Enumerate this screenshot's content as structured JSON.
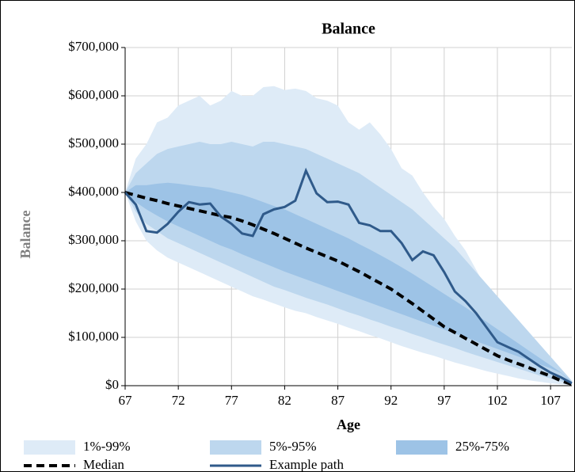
{
  "chart_data": {
    "type": "fan",
    "title": "Balance",
    "xlabel": "Age",
    "ylabel": "Balance",
    "x": [
      67,
      68,
      69,
      70,
      71,
      72,
      73,
      74,
      75,
      76,
      77,
      78,
      79,
      80,
      81,
      82,
      83,
      84,
      85,
      86,
      87,
      88,
      89,
      90,
      91,
      92,
      93,
      94,
      95,
      96,
      97,
      98,
      99,
      100,
      101,
      102,
      103,
      104,
      105,
      106,
      107,
      108,
      109
    ],
    "xlim": [
      67,
      109
    ],
    "xticks": [
      67,
      72,
      77,
      82,
      87,
      92,
      97,
      102,
      107
    ],
    "ylim": [
      0,
      700000
    ],
    "yticks": [
      {
        "value": 0,
        "label": "$0"
      },
      {
        "value": 100000,
        "label": "$100,000"
      },
      {
        "value": 200000,
        "label": "$200,000"
      },
      {
        "value": 300000,
        "label": "$300,000"
      },
      {
        "value": 400000,
        "label": "$400,000"
      },
      {
        "value": 500000,
        "label": "$500,000"
      },
      {
        "value": 600000,
        "label": "$600,000"
      },
      {
        "value": 700000,
        "label": "$700,000"
      }
    ],
    "grid": true,
    "bands": [
      {
        "name": "1%-99%",
        "color": "#deebf7",
        "high": [
          400000,
          470000,
          500000,
          545000,
          555000,
          580000,
          590000,
          600000,
          580000,
          590000,
          610000,
          600000,
          600000,
          618000,
          620000,
          612000,
          615000,
          610000,
          595000,
          590000,
          580000,
          545000,
          530000,
          545000,
          520000,
          490000,
          450000,
          435000,
          400000,
          370000,
          345000,
          310000,
          280000,
          240000,
          200000,
          165000,
          130000,
          100000,
          75000,
          55000,
          35000,
          20000,
          5000
        ],
        "low": [
          400000,
          340000,
          300000,
          280000,
          265000,
          255000,
          245000,
          235000,
          225000,
          215000,
          205000,
          195000,
          185000,
          178000,
          170000,
          162000,
          155000,
          150000,
          142000,
          135000,
          128000,
          120000,
          113000,
          105000,
          98000,
          90000,
          82000,
          75000,
          68000,
          62000,
          55000,
          48000,
          42000,
          36000,
          30000,
          25000,
          20000,
          15000,
          11000,
          8000,
          5000,
          3000,
          1000
        ]
      },
      {
        "name": "5%-95%",
        "color": "#bdd7ee",
        "high": [
          400000,
          440000,
          460000,
          480000,
          490000,
          495000,
          500000,
          505000,
          500000,
          500000,
          505000,
          500000,
          495000,
          505000,
          505000,
          500000,
          495000,
          490000,
          480000,
          470000,
          460000,
          450000,
          440000,
          425000,
          410000,
          395000,
          380000,
          365000,
          345000,
          325000,
          305000,
          285000,
          260000,
          235000,
          210000,
          185000,
          160000,
          135000,
          110000,
          85000,
          60000,
          35000,
          10000
        ],
        "low": [
          400000,
          360000,
          335000,
          320000,
          305000,
          295000,
          285000,
          275000,
          265000,
          255000,
          245000,
          235000,
          225000,
          215000,
          205000,
          198000,
          190000,
          182000,
          175000,
          168000,
          160000,
          152000,
          145000,
          137000,
          130000,
          122000,
          115000,
          107000,
          100000,
          92000,
          85000,
          78000,
          70000,
          63000,
          56000,
          49000,
          42000,
          35000,
          28000,
          21000,
          15000,
          9000,
          3000
        ]
      },
      {
        "name": "25%-75%",
        "color": "#9dc3e6",
        "high": [
          400000,
          415000,
          415000,
          418000,
          420000,
          418000,
          415000,
          412000,
          410000,
          405000,
          400000,
          395000,
          388000,
          380000,
          372000,
          365000,
          355000,
          345000,
          335000,
          325000,
          315000,
          305000,
          293000,
          282000,
          270000,
          258000,
          245000,
          232000,
          218000,
          204000,
          190000,
          176000,
          162000,
          147000,
          132000,
          117000,
          102000,
          87000,
          72000,
          57000,
          42000,
          27000,
          8000
        ],
        "low": [
          400000,
          380000,
          365000,
          352000,
          340000,
          330000,
          320000,
          310000,
          300000,
          290000,
          282000,
          272000,
          263000,
          254000,
          245000,
          236000,
          228000,
          220000,
          212000,
          204000,
          196000,
          188000,
          180000,
          172000,
          164000,
          156000,
          148000,
          140000,
          132000,
          124000,
          116000,
          108000,
          100000,
          92000,
          84000,
          76000,
          68000,
          60000,
          52000,
          44000,
          36000,
          26000,
          5000
        ]
      }
    ],
    "series": [
      {
        "name": "Median",
        "color": "#000000",
        "dashed": true,
        "values": [
          400000,
          394000,
          388000,
          383000,
          377000,
          372000,
          367000,
          362000,
          357000,
          352000,
          348000,
          341000,
          333000,
          324000,
          315000,
          305000,
          295000,
          285000,
          276000,
          267000,
          258000,
          247000,
          236000,
          224000,
          212000,
          200000,
          185000,
          170000,
          154000,
          138000,
          122000,
          110000,
          98000,
          86000,
          74000,
          62000,
          53000,
          45000,
          37000,
          28000,
          20000,
          10000,
          3000
        ]
      },
      {
        "name": "Example path",
        "color": "#2f5a8a",
        "dashed": false,
        "values": [
          400000,
          375000,
          320000,
          317000,
          335000,
          360000,
          380000,
          375000,
          377000,
          350000,
          335000,
          315000,
          310000,
          355000,
          365000,
          370000,
          383000,
          445000,
          398000,
          380000,
          381000,
          375000,
          337000,
          332000,
          320000,
          320000,
          295000,
          260000,
          278000,
          270000,
          235000,
          195000,
          175000,
          150000,
          120000,
          90000,
          80000,
          70000,
          55000,
          40000,
          27000,
          17000,
          5000
        ]
      }
    ]
  }
}
